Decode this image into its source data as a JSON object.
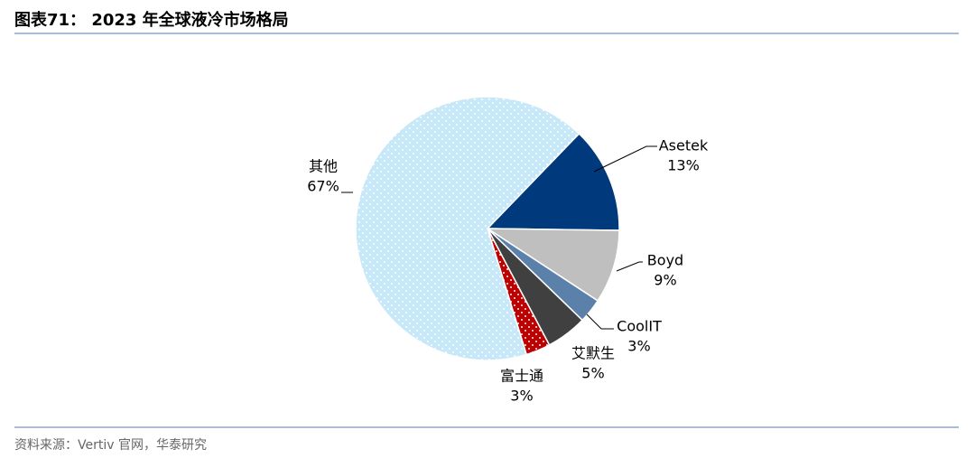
{
  "chart_data": {
    "type": "pie",
    "title": "图表71： 2023 年全球液冷市场格局",
    "categories": [
      "Asetek",
      "Boyd",
      "CoolIT",
      "艾默生",
      "富士通",
      "其他"
    ],
    "values": [
      13,
      9,
      3,
      5,
      3,
      67
    ],
    "value_labels": [
      "13%",
      "9%",
      "3%",
      "5%",
      "3%",
      "67%"
    ],
    "colors": [
      "#003a7d",
      "#bfbfbf",
      "#5b80aa",
      "#404040",
      "#c00000",
      "#c6e8f8"
    ],
    "dotted": [
      false,
      false,
      false,
      false,
      true,
      true
    ],
    "source": "资料来源：Vertiv 官网，华泰研究"
  }
}
